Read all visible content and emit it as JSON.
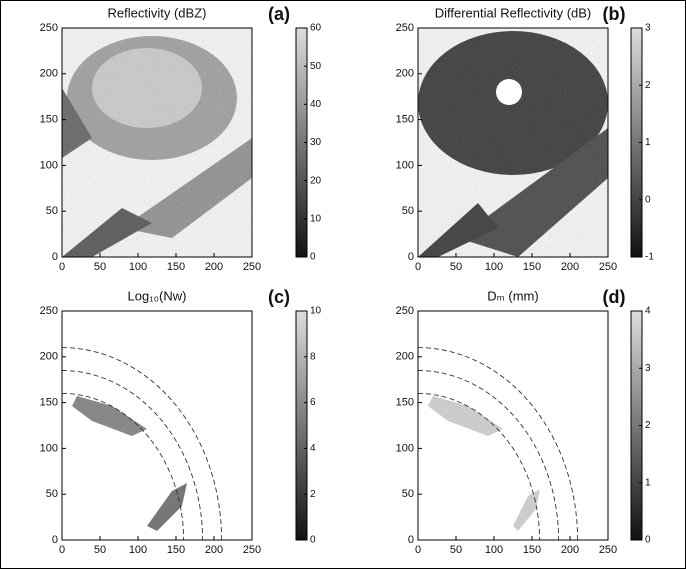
{
  "chart_data": [
    {
      "type": "heatmap",
      "title": "Reflectivity (dBZ)",
      "label": "(a)",
      "xlim": [
        0,
        250
      ],
      "xticks": [
        0,
        50,
        100,
        150,
        200,
        250
      ],
      "ylim": [
        0,
        250
      ],
      "yticks": [
        0,
        50,
        100,
        150,
        200,
        250
      ],
      "clim": [
        0,
        60
      ],
      "cticks": [
        0,
        10,
        20,
        30,
        40,
        50,
        60
      ]
    },
    {
      "type": "heatmap",
      "title": "Differential Reflectivity (dB)",
      "label": "(b)",
      "xlim": [
        0,
        250
      ],
      "xticks": [
        0,
        50,
        100,
        150,
        200,
        250
      ],
      "ylim": [
        0,
        250
      ],
      "yticks": [
        0,
        50,
        100,
        150,
        200,
        250
      ],
      "clim": [
        -1,
        3
      ],
      "cticks": [
        -1,
        0,
        1,
        2,
        3
      ]
    },
    {
      "type": "heatmap",
      "title": "Log₁₀(Nw)",
      "label": "(c)",
      "xlim": [
        0,
        250
      ],
      "xticks": [
        0,
        50,
        100,
        150,
        200,
        250
      ],
      "ylim": [
        0,
        250
      ],
      "yticks": [
        0,
        50,
        100,
        150,
        200,
        250
      ],
      "clim": [
        0,
        10
      ],
      "cticks": [
        0,
        2,
        4,
        6,
        8,
        10
      ]
    },
    {
      "type": "heatmap",
      "title": "Dₘ (mm)",
      "label": "(d)",
      "xlim": [
        0,
        250
      ],
      "xticks": [
        0,
        50,
        100,
        150,
        200,
        250
      ],
      "ylim": [
        0,
        250
      ],
      "yticks": [
        0,
        50,
        100,
        150,
        200,
        250
      ],
      "clim": [
        0,
        4
      ],
      "cticks": [
        0,
        1,
        2,
        3,
        4
      ]
    }
  ]
}
